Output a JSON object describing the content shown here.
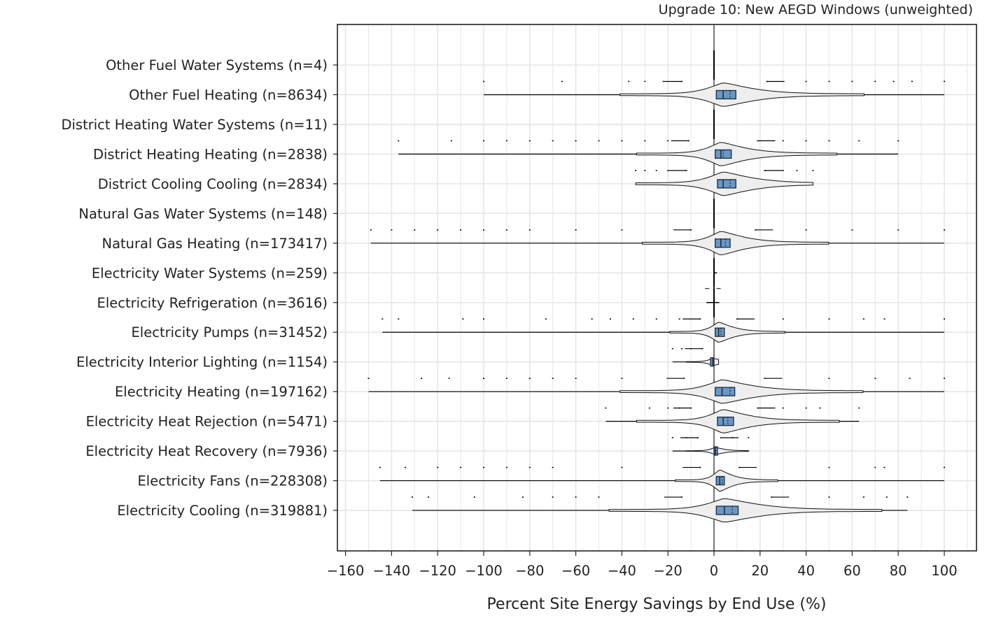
{
  "chart_data": {
    "type": "violin",
    "title": "Upgrade 10: New AEGD Windows (unweighted)",
    "xlabel": "Percent Site Energy Savings by End Use (%)",
    "ylabel": "",
    "xlim": [
      -163,
      114
    ],
    "xticks": [
      -160,
      -140,
      -120,
      -100,
      -80,
      -60,
      -40,
      -20,
      0,
      20,
      40,
      60,
      80,
      100
    ],
    "xtick_labels": [
      "−160",
      "−140",
      "−120",
      "−100",
      "−80",
      "−60",
      "−40",
      "−20",
      "0",
      "20",
      "40",
      "60",
      "80",
      "100"
    ],
    "grid": true,
    "colors": {
      "box_fill": "#6a97c6",
      "violin_fill": "#eeeeee",
      "grid": "#e6e6e6",
      "zero_line": "#000000"
    },
    "categories": [
      {
        "label": "Other Fuel Water Systems  (n=4)",
        "name": "Other Fuel Water Systems",
        "n": 4,
        "min": 0,
        "q1": 0,
        "median": 0,
        "mean": 0,
        "q3": 0,
        "max": 0,
        "violin_width": 0,
        "outliers_low": [],
        "outliers_high": []
      },
      {
        "label": "Other Fuel Heating  (n=8634)",
        "name": "Other Fuel Heating",
        "n": 8634,
        "min": -100,
        "q1": 1,
        "median": 4,
        "mean": 7,
        "q3": 9.5,
        "max": 100,
        "violin_width": 1.0,
        "outliers_low": [
          -100,
          -66,
          -37,
          -30,
          -22,
          -14
        ],
        "outliers_high": [
          23,
          40,
          50,
          60,
          70,
          78,
          86,
          100
        ]
      },
      {
        "label": "District Heating Water Systems  (n=11)",
        "name": "District Heating Water Systems",
        "n": 11,
        "min": 0,
        "q1": 0,
        "median": 0,
        "mean": 0,
        "q3": 0,
        "max": 0,
        "violin_width": 0,
        "outliers_low": [],
        "outliers_high": []
      },
      {
        "label": "District Heating Heating  (n=2838)",
        "name": "District Heating Heating",
        "n": 2838,
        "min": -137,
        "q1": 0.5,
        "median": 3,
        "mean": 4,
        "q3": 7.5,
        "max": 80,
        "violin_width": 1.0,
        "outliers_low": [
          -137,
          -114,
          -100,
          -90,
          -80,
          -70,
          -60,
          -50,
          -40,
          -30,
          -20,
          -11
        ],
        "outliers_high": [
          19,
          30,
          40,
          50,
          63,
          80
        ]
      },
      {
        "label": "District Cooling Cooling  (n=2834)",
        "name": "District Cooling Cooling",
        "n": 2834,
        "min": -34,
        "q1": 1.5,
        "median": 4,
        "mean": 7,
        "q3": 9.5,
        "max": 43,
        "violin_width": 1.0,
        "outliers_low": [
          -34,
          -30,
          -25,
          -20,
          -12
        ],
        "outliers_high": [
          22,
          30,
          36,
          43
        ]
      },
      {
        "label": "Natural Gas Water Systems  (n=148)",
        "name": "Natural Gas Water Systems",
        "n": 148,
        "min": 0,
        "q1": 0,
        "median": 0,
        "mean": 0,
        "q3": 0,
        "max": 0,
        "violin_width": 0,
        "outliers_low": [],
        "outliers_high": []
      },
      {
        "label": "Natural Gas Heating  (n=173417)",
        "name": "Natural Gas Heating",
        "n": 173417,
        "min": -149,
        "q1": 0.5,
        "median": 3,
        "mean": 5,
        "q3": 7,
        "max": 100,
        "violin_width": 1.0,
        "outliers_low": [
          -149,
          -140,
          -130,
          -120,
          -110,
          -100,
          -90,
          -80,
          -60,
          -40,
          -10
        ],
        "outliers_high": [
          18,
          40,
          60,
          80,
          100
        ]
      },
      {
        "label": "Electricity Water Systems  (n=259)",
        "name": "Electricity Water Systems",
        "n": 259,
        "min": 0,
        "q1": 0,
        "median": 0,
        "mean": 0,
        "q3": 0,
        "max": 1,
        "violin_width": 0,
        "outliers_low": [],
        "outliers_high": []
      },
      {
        "label": "Electricity Refrigeration  (n=3616)",
        "name": "Electricity Refrigeration",
        "n": 3616,
        "min": -3,
        "q1": 0,
        "median": 0,
        "mean": 0,
        "q3": 0,
        "max": 2,
        "violin_width": 0,
        "outliers_low": [
          -3
        ],
        "outliers_high": [
          2
        ]
      },
      {
        "label": "Electricity Pumps  (n=31452)",
        "name": "Electricity Pumps",
        "n": 31452,
        "min": -144,
        "q1": 0.5,
        "median": 2,
        "mean": 3,
        "q3": 4.5,
        "max": 100,
        "violin_width": 0.85,
        "outliers_low": [
          -144,
          -137,
          -109,
          -100,
          -73,
          -53,
          -45,
          -35,
          -25,
          -15,
          -6
        ],
        "outliers_high": [
          10,
          30,
          50,
          65,
          74,
          100
        ]
      },
      {
        "label": "Electricity Interior Lighting  (n=1154)",
        "name": "Electricity Interior Lighting",
        "n": 1154,
        "min": -18,
        "q1": -1.5,
        "median": -0.5,
        "mean": -0.3,
        "q3": 0,
        "max": 2,
        "violin_width": 0.3,
        "outliers_low": [
          -18,
          -14,
          -10,
          -5
        ],
        "outliers_high": []
      },
      {
        "label": "Electricity Heating  (n=197162)",
        "name": "Electricity Heating",
        "n": 197162,
        "min": -150,
        "q1": 0.5,
        "median": 3.5,
        "mean": 7,
        "q3": 9,
        "max": 100,
        "violin_width": 1.0,
        "outliers_low": [
          -150,
          -127,
          -115,
          -100,
          -90,
          -80,
          -70,
          -60,
          -40,
          -13
        ],
        "outliers_high": [
          22,
          50,
          70,
          85,
          100
        ]
      },
      {
        "label": "Electricity Heat Rejection  (n=5471)",
        "name": "Electricity Heat Rejection",
        "n": 5471,
        "min": -47,
        "q1": 1.5,
        "median": 4,
        "mean": 6,
        "q3": 8.5,
        "max": 63,
        "violin_width": 1.0,
        "outliers_low": [
          -47,
          -28,
          -20,
          -15,
          -10
        ],
        "outliers_high": [
          19,
          30,
          40,
          46,
          63
        ]
      },
      {
        "label": "Electricity Heat Recovery  (n=7936)",
        "name": "Electricity Heat Recovery",
        "n": 7936,
        "min": -18,
        "q1": 0,
        "median": 0.5,
        "mean": 0.8,
        "q3": 1.5,
        "max": 15,
        "violin_width": 0.3,
        "outliers_low": [
          -18,
          -12,
          -7
        ],
        "outliers_high": [
          3,
          8,
          15
        ]
      },
      {
        "label": "Electricity Fans  (n=228308)",
        "name": "Electricity Fans",
        "n": 228308,
        "min": -145,
        "q1": 1,
        "median": 2.5,
        "mean": 3.5,
        "q3": 4.5,
        "max": 100,
        "violin_width": 0.9,
        "outliers_low": [
          -145,
          -134,
          -120,
          -110,
          -100,
          -90,
          -80,
          -70,
          -40,
          -6
        ],
        "outliers_high": [
          11,
          50,
          70,
          74,
          100
        ]
      },
      {
        "label": "Electricity Cooling  (n=319881)",
        "name": "Electricity Cooling",
        "n": 319881,
        "min": -131,
        "q1": 1,
        "median": 4.5,
        "mean": 8,
        "q3": 10.5,
        "max": 84,
        "violin_width": 1.0,
        "outliers_low": [
          -131,
          -124,
          -104,
          -83,
          -70,
          -60,
          -50,
          -14
        ],
        "outliers_high": [
          25,
          50,
          65,
          75,
          84
        ]
      }
    ]
  }
}
